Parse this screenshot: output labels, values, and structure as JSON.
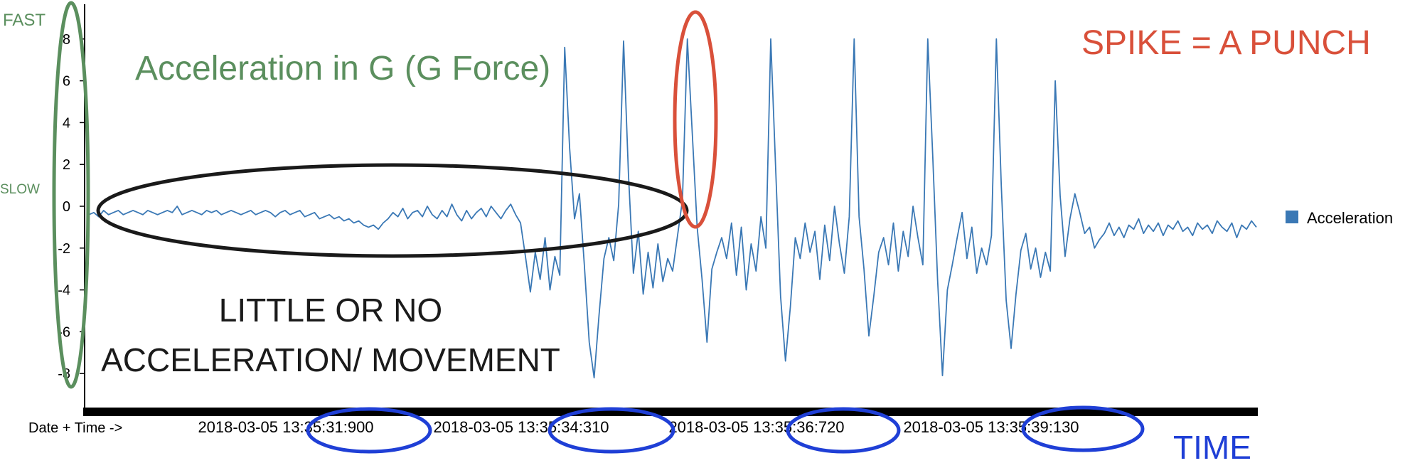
{
  "chart_data": {
    "type": "line",
    "title": "",
    "xlabel": "Date + Time ->",
    "ylabel": "",
    "ylim": [
      -9.5,
      9.5
    ],
    "yticks": [
      8,
      6,
      4,
      2,
      0,
      -2,
      -4,
      -6,
      -8
    ],
    "xticks": [
      "2018-03-05 13:35:31:900",
      "2018-03-05 13:35:34:310",
      "2018-03-05 13:35:36:720",
      "2018-03-05 13:35:39:130"
    ],
    "x_range": [
      "2018-03-05 13:35:29:900",
      "2018-03-05 13:35:41:490"
    ],
    "legend_position": "right",
    "grid": false,
    "series": [
      {
        "name": "Acceleration",
        "color": "#3a78b5",
        "values": [
          -0.4,
          -0.3,
          -0.5,
          -0.2,
          -0.4,
          -0.3,
          -0.2,
          -0.4,
          -0.3,
          -0.2,
          -0.3,
          -0.4,
          -0.2,
          -0.3,
          -0.4,
          -0.3,
          -0.2,
          -0.3,
          0.0,
          -0.4,
          -0.3,
          -0.2,
          -0.3,
          -0.4,
          -0.2,
          -0.3,
          -0.2,
          -0.4,
          -0.3,
          -0.2,
          -0.3,
          -0.4,
          -0.3,
          -0.2,
          -0.4,
          -0.3,
          -0.2,
          -0.3,
          -0.5,
          -0.3,
          -0.2,
          -0.4,
          -0.3,
          -0.2,
          -0.5,
          -0.4,
          -0.3,
          -0.6,
          -0.5,
          -0.4,
          -0.6,
          -0.5,
          -0.7,
          -0.6,
          -0.8,
          -0.7,
          -0.9,
          -1.0,
          -0.9,
          -1.1,
          -0.8,
          -0.6,
          -0.3,
          -0.5,
          -0.1,
          -0.6,
          -0.3,
          -0.2,
          -0.5,
          0.0,
          -0.4,
          -0.6,
          -0.2,
          -0.5,
          0.1,
          -0.4,
          -0.7,
          -0.2,
          -0.6,
          -0.3,
          -0.1,
          -0.5,
          0.0,
          -0.3,
          -0.6,
          -0.2,
          0.1,
          -0.4,
          -0.8,
          -2.4,
          -4.1,
          -2.2,
          -3.5,
          -1.5,
          -4.0,
          -2.4,
          -3.3,
          7.6,
          2.8,
          -0.6,
          0.6,
          -2.8,
          -6.5,
          -8.2,
          -5.2,
          -2.5,
          -1.5,
          -2.6,
          0.1,
          7.9,
          1.5,
          -3.2,
          -1.2,
          -4.2,
          -2.2,
          -3.9,
          -1.8,
          -3.6,
          -2.5,
          -3.1,
          -1.4,
          0.3,
          8.0,
          3.5,
          -1.0,
          -3.5,
          -6.5,
          -3.0,
          -2.2,
          -1.5,
          -2.5,
          -0.8,
          -3.3,
          -1.0,
          -4.0,
          -1.8,
          -3.1,
          -0.5,
          -2.0,
          8.0,
          1.8,
          -4.3,
          -7.4,
          -4.8,
          -1.5,
          -2.5,
          -0.8,
          -2.2,
          -1.2,
          -3.5,
          -0.9,
          -2.6,
          0.0,
          -1.8,
          -3.2,
          -0.5,
          8.0,
          -0.5,
          -3.0,
          -6.2,
          -4.3,
          -2.2,
          -1.5,
          -2.8,
          -0.8,
          -3.1,
          -1.2,
          -2.4,
          0.0,
          -1.5,
          -2.8,
          8.0,
          2.5,
          -3.5,
          -8.1,
          -4.0,
          -2.8,
          -1.5,
          -0.3,
          -2.5,
          -1.0,
          -3.2,
          -2.0,
          -2.8,
          -1.4,
          8.0,
          1.0,
          -4.5,
          -6.8,
          -4.2,
          -2.1,
          -1.3,
          -3.0,
          -2.0,
          -3.4,
          -2.2,
          -3.1,
          6.0,
          0.5,
          -2.4,
          -0.6,
          0.6,
          -0.3,
          -1.3,
          -1.0,
          -2.0,
          -1.6,
          -1.3,
          -0.8,
          -1.4,
          -1.0,
          -1.5,
          -0.9,
          -1.1,
          -0.6,
          -1.3,
          -0.9,
          -1.2,
          -0.8,
          -1.4,
          -0.9,
          -1.1,
          -0.7,
          -1.2,
          -1.0,
          -1.4,
          -0.8,
          -1.1,
          -0.9,
          -1.3,
          -0.7,
          -1.0,
          -1.2,
          -0.8,
          -1.5,
          -0.9,
          -1.1,
          -0.7,
          -1.0
        ]
      }
    ],
    "annotations": {
      "y_axis_label": "Acceleration in G (G Force)",
      "fast": "FAST",
      "slow": "SLOW",
      "spike_note": "SPIKE = A PUNCH",
      "rest_line1": "LITTLE OR NO",
      "rest_line2": "ACCELERATION/ MOVEMENT",
      "time_label": "TIME"
    },
    "colors": {
      "line": "#3a78b5",
      "green": "#5b8f5e",
      "red": "#d9503a",
      "black": "#1a1a1a",
      "blue": "#1f3fd6"
    }
  }
}
